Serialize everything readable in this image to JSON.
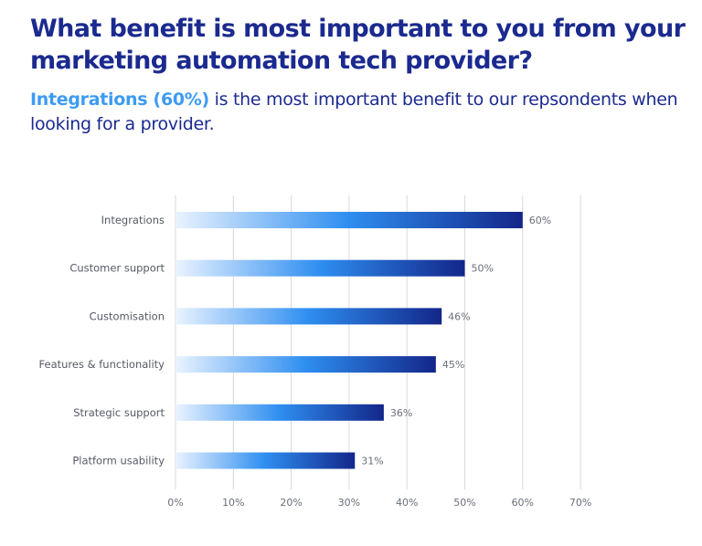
{
  "header": {
    "title": "What benefit is most important to you from your marketing automation tech provider?",
    "subtitle_highlight": "Integrations (60%)",
    "subtitle_rest": " is the most important benefit to our repsondents when looking for a provider."
  },
  "colors": {
    "title": "#1b2a8f",
    "highlight": "#3d9bf2",
    "bar_start": "#eaf3ff",
    "bar_mid": "#2e8ef0",
    "bar_end": "#13268a",
    "grid": "#d9d9d9"
  },
  "chart_data": {
    "type": "bar",
    "orientation": "horizontal",
    "categories": [
      "Integrations",
      "Customer support",
      "Customisation",
      "Features & functionality",
      "Strategic support",
      "Platform usability"
    ],
    "values": [
      60,
      50,
      46,
      45,
      36,
      31
    ],
    "value_labels": [
      "60%",
      "50%",
      "46%",
      "45%",
      "36%",
      "31%"
    ],
    "xlim": [
      0,
      70
    ],
    "x_ticks": [
      "0%",
      "10%",
      "20%",
      "30%",
      "40%",
      "50%",
      "60%",
      "70%"
    ],
    "grid": true,
    "legend": "none"
  }
}
